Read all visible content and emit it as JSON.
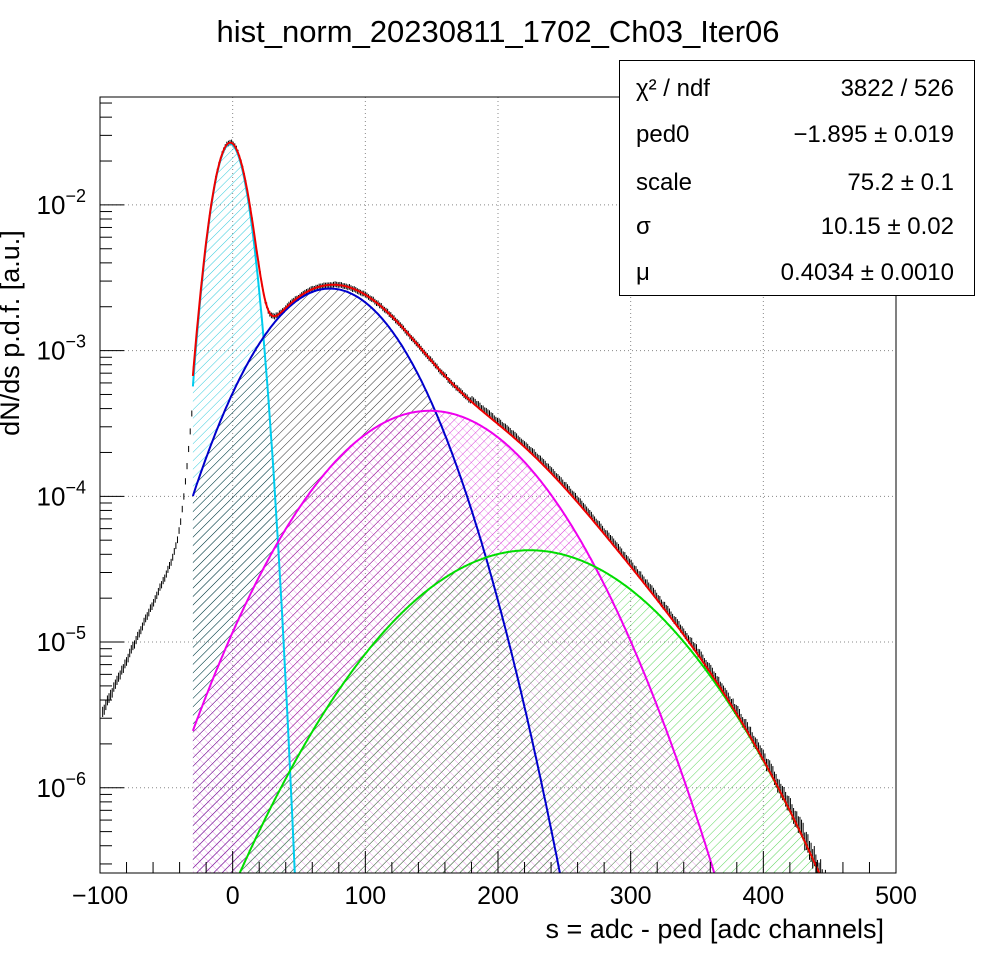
{
  "chart_data": {
    "type": "line",
    "title": "hist_norm_20230811_1702_Ch03_Iter06",
    "xlabel": "s = adc - ped [adc channels]",
    "ylabel": "dN/ds p.d.f. [a.u.]",
    "xlim": [
      -100,
      500
    ],
    "ylim": [
      2.6e-07,
      0.055
    ],
    "yscale": "log",
    "grid": true,
    "x_ticks": [
      "−100",
      "0",
      "100",
      "200",
      "300",
      "400",
      "500"
    ],
    "y_ticks": [
      {
        "value": 1e-06,
        "base": "10",
        "exp": "−6"
      },
      {
        "value": 1e-05,
        "base": "10",
        "exp": "−5"
      },
      {
        "value": 0.0001,
        "base": "10",
        "exp": "−4"
      },
      {
        "value": 0.001,
        "base": "10",
        "exp": "−3"
      },
      {
        "value": 0.01,
        "base": "10",
        "exp": "−2"
      }
    ],
    "fit_parameters": {
      "ped0": -1.895,
      "scale": 75.2,
      "sigma": 10.15,
      "mu": 0.4034,
      "fit_range": [
        -30,
        490
      ]
    },
    "components": [
      {
        "order": 0,
        "color": "#00ccee",
        "hatch": "#33ccdd"
      },
      {
        "order": 1,
        "color": "#0000cc",
        "hatch": "#000000"
      },
      {
        "order": 2,
        "color": "#ee00ee",
        "hatch": "#cc00cc"
      },
      {
        "order": 3,
        "color": "#00dd00",
        "hatch": "#33cc33"
      }
    ],
    "total_fit_color": "#ee0000",
    "data_color": "#000000"
  },
  "stats_box": {
    "rows": [
      {
        "label": "χ² / ndf",
        "value": "3822 / 526"
      },
      {
        "label": "ped0",
        "value": "−1.895 ± 0.019"
      },
      {
        "label": "scale",
        "value": "75.2 ± 0.1"
      },
      {
        "label": "σ",
        "value": "10.15 ± 0.02"
      },
      {
        "label": "μ",
        "value": "0.4034 ± 0.0010"
      }
    ]
  }
}
